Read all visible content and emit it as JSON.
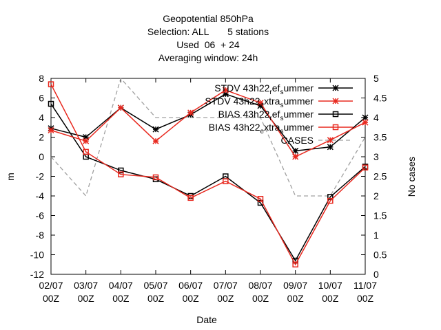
{
  "chart_data": {
    "type": "line",
    "title_lines": [
      "Geopotential 850hPa",
      "Selection: ALL       5 stations",
      "Used  06  + 24",
      "Averaging window: 24h"
    ],
    "xlabel": "Date",
    "ylabel": "m",
    "y2label": "No cases",
    "categories": [
      "02/07 00Z",
      "03/07 00Z",
      "04/07 00Z",
      "05/07 00Z",
      "06/07 00Z",
      "07/07 00Z",
      "08/07 00Z",
      "09/07 00Z",
      "10/07 00Z",
      "11/07 00Z"
    ],
    "category_lines": [
      [
        "02/07",
        "00Z"
      ],
      [
        "03/07",
        "00Z"
      ],
      [
        "04/07",
        "00Z"
      ],
      [
        "05/07",
        "00Z"
      ],
      [
        "06/07",
        "00Z"
      ],
      [
        "07/07",
        "00Z"
      ],
      [
        "08/07",
        "00Z"
      ],
      [
        "09/07",
        "00Z"
      ],
      [
        "10/07",
        "00Z"
      ],
      [
        "11/07",
        "00Z"
      ]
    ],
    "ylim": [
      -12,
      8
    ],
    "yticks": [
      8,
      6,
      4,
      2,
      0,
      -2,
      -4,
      -6,
      -8,
      -10,
      -12
    ],
    "y2lim": [
      0,
      5
    ],
    "y2ticks": [
      5,
      4.5,
      4,
      3.5,
      3,
      2.5,
      2,
      1.5,
      1,
      0.5,
      0
    ],
    "legend_position": "top-right",
    "grid": false,
    "series": [
      {
        "name_parts": [
          [
            "STDV 43h22",
            "n"
          ],
          [
            "r",
            "sub"
          ],
          [
            "ef",
            "n"
          ],
          [
            "s",
            "sub"
          ],
          [
            "ummer",
            "n"
          ]
        ],
        "axis": "y",
        "color": "#000000",
        "marker": "star",
        "dash": "solid",
        "values": [
          2.9,
          2.0,
          5.0,
          2.8,
          4.3,
          6.4,
          5.2,
          0.6,
          1.0,
          4.0
        ]
      },
      {
        "name_parts": [
          [
            "STDV 43h22",
            "n"
          ],
          [
            "e",
            "sub"
          ],
          [
            "xtra",
            "n"
          ],
          [
            "s",
            "sub"
          ],
          [
            "ummer",
            "n"
          ]
        ],
        "axis": "y",
        "color": "#e8281e",
        "marker": "star",
        "dash": "solid",
        "values": [
          2.7,
          1.6,
          5.0,
          1.6,
          4.5,
          6.8,
          5.5,
          0.0,
          1.7,
          3.5
        ]
      },
      {
        "name_parts": [
          [
            "BIAS 43h22",
            "n"
          ],
          [
            "r",
            "sub"
          ],
          [
            "ef",
            "n"
          ],
          [
            "s",
            "sub"
          ],
          [
            "ummer",
            "n"
          ]
        ],
        "axis": "y",
        "color": "#000000",
        "marker": "square",
        "dash": "solid",
        "values": [
          5.4,
          0.0,
          -1.4,
          -2.3,
          -4.0,
          -2.0,
          -4.7,
          -10.6,
          -4.1,
          -1.0
        ]
      },
      {
        "name_parts": [
          [
            "BIAS 43h22",
            "n"
          ],
          [
            "e",
            "sub"
          ],
          [
            "xtra",
            "n"
          ],
          [
            "s",
            "sub"
          ],
          [
            "ummer",
            "n"
          ]
        ],
        "axis": "y",
        "color": "#e8281e",
        "marker": "square",
        "dash": "solid",
        "values": [
          7.4,
          0.5,
          -1.8,
          -2.1,
          -4.2,
          -2.5,
          -4.3,
          -11.0,
          -4.5,
          -1.1
        ]
      },
      {
        "name_parts": [
          [
            "CASES",
            "n"
          ]
        ],
        "axis": "y2",
        "color": "#a0a0a0",
        "marker": "none",
        "dash": "dashed",
        "values": [
          3.0,
          2.0,
          5.0,
          4.0,
          4.0,
          4.0,
          4.0,
          2.0,
          2.0,
          3.5
        ]
      }
    ]
  }
}
